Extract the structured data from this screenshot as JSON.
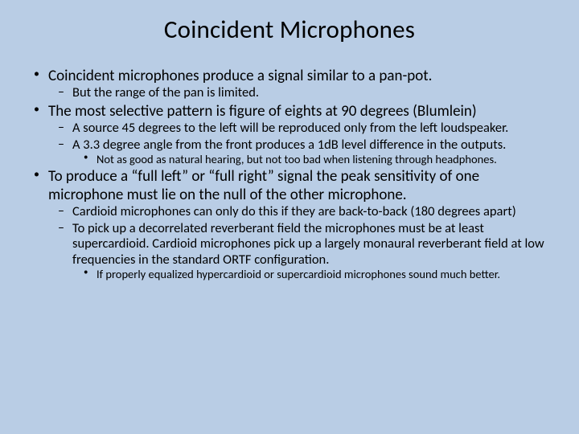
{
  "title": "Coincident Microphones",
  "bullets": {
    "b1": "Coincident microphones produce a signal similar to a pan-pot.",
    "b1_1": "But the range of the pan is limited.",
    "b2": "The most selective pattern is figure of eights at 90 degrees (Blumlein)",
    "b2_1": "A source 45 degrees to the left will be reproduced only from the left loudspeaker.",
    "b2_2": "A 3.3 degree angle from the front produces a 1dB level difference in the outputs.",
    "b2_2_1": "Not as good as natural hearing, but not too bad when listening through headphones.",
    "b3": "To produce a “full left” or “full right” signal the peak sensitivity of one microphone must lie on the null of the other microphone.",
    "b3_1": "Cardioid microphones can only do this if they are back-to-back (180 degrees apart)",
    "b3_2": "To pick up a decorrelated reverberant field the microphones must be at least supercardioid. Cardioid microphones pick up a largely monaural reverberant field at low frequencies in the standard ORTF configuration.",
    "b3_2_1": "If properly equalized hypercardioid or supercardioid microphones sound much better."
  },
  "style": {
    "background": "#b9cde5",
    "text_color": "#000000",
    "title_fontsize": 31,
    "lvl1_fontsize": 19,
    "lvl2_fontsize": 16.5,
    "lvl3_fontsize": 14.5,
    "font_family": "Calibri"
  }
}
